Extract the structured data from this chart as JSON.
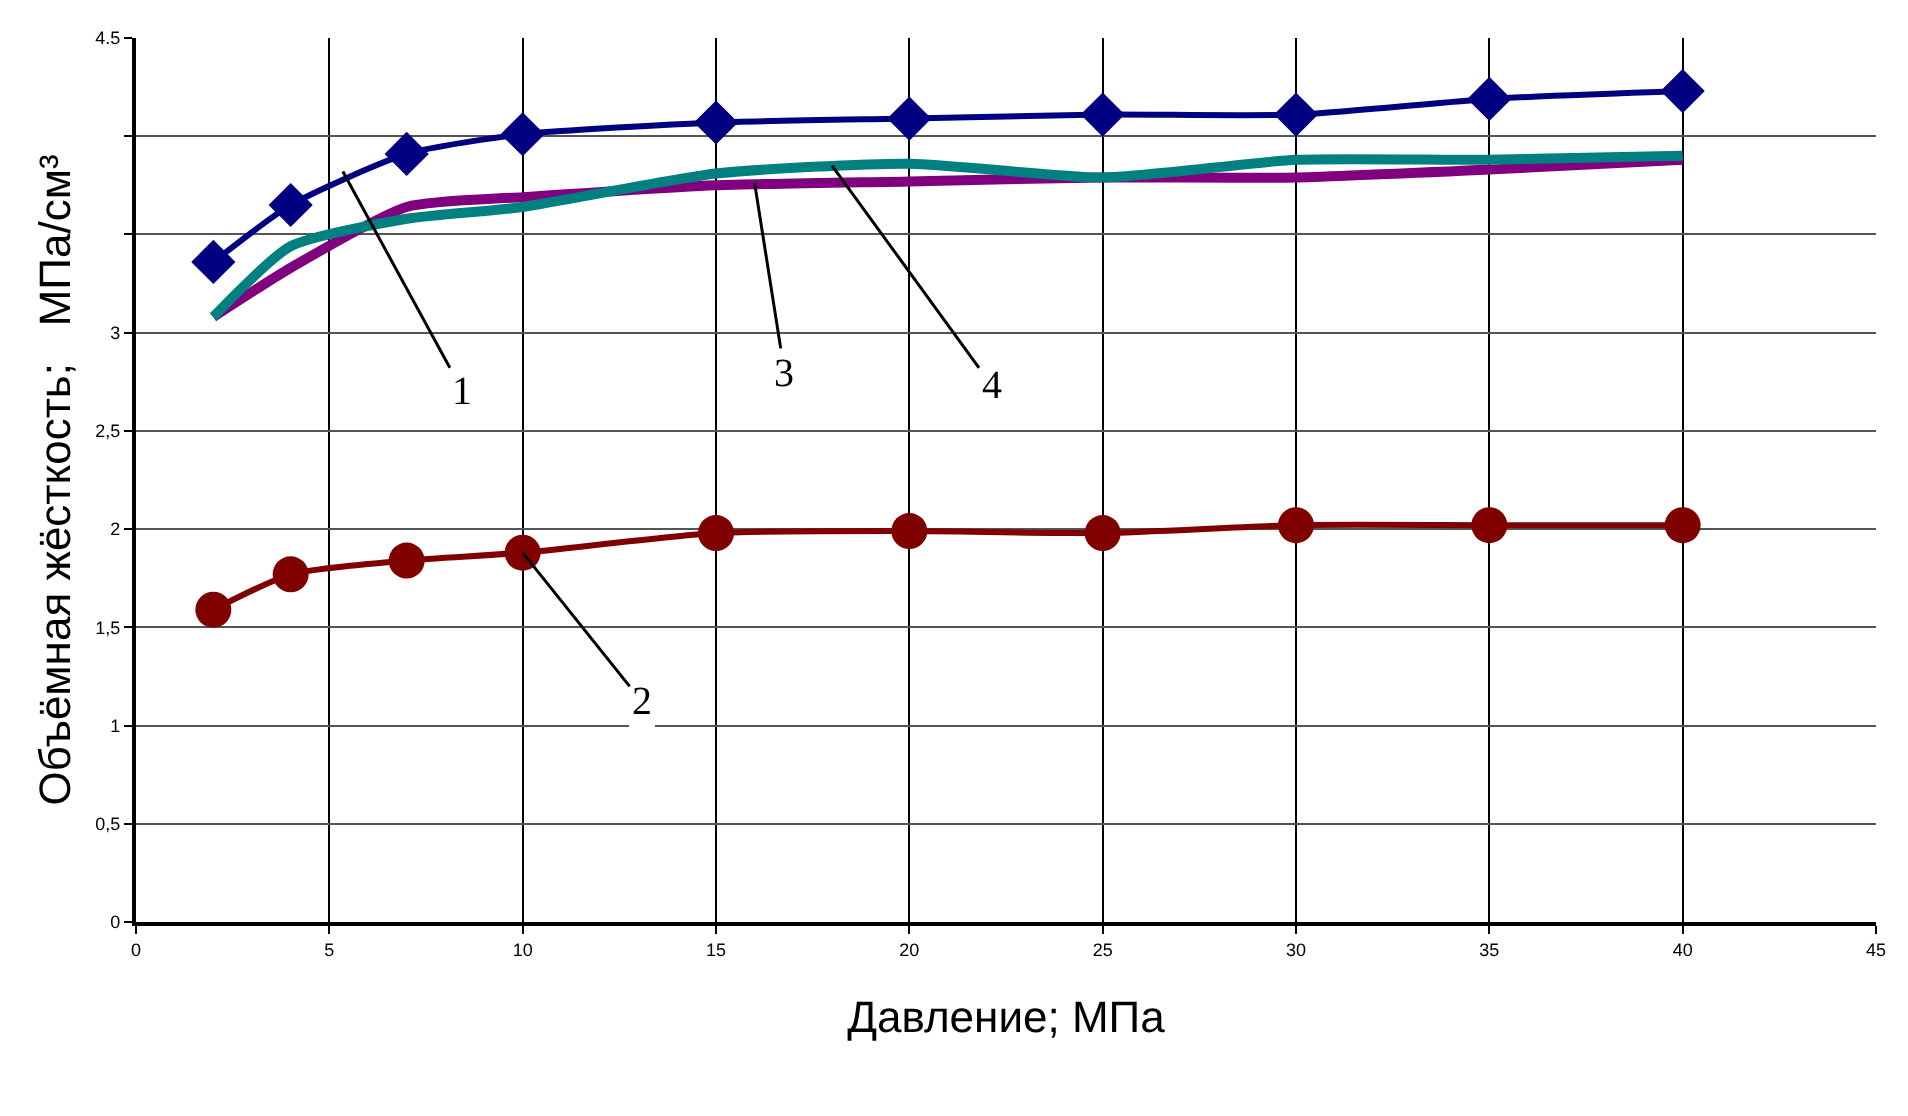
{
  "chart_data": {
    "type": "line",
    "xlabel": "Давление; МПа",
    "ylabel": "Объёмная жёсткость;   МПа/см³",
    "x": [
      2,
      4,
      7,
      10,
      15,
      20,
      25,
      30,
      35,
      40
    ],
    "series": [
      {
        "color": "#000080",
        "marker": "diamond",
        "values": [
          3.36,
          3.65,
          3.91,
          4.01,
          4.07,
          4.09,
          4.11,
          4.11,
          4.19,
          4.23
        ]
      },
      {
        "color": "#800000",
        "marker": "circle",
        "values": [
          1.59,
          1.77,
          1.84,
          1.88,
          1.98,
          1.99,
          1.98,
          2.02,
          2.02,
          2.02
        ]
      },
      {
        "color": "#800080",
        "marker": "none",
        "values": [
          3.08,
          3.33,
          3.64,
          3.69,
          3.75,
          3.77,
          3.79,
          3.79,
          3.83,
          3.88
        ]
      },
      {
        "color": "#008080",
        "marker": "none",
        "values": [
          3.08,
          3.44,
          3.58,
          3.64,
          3.81,
          3.86,
          3.79,
          3.88,
          3.88,
          3.9
        ]
      }
    ],
    "xlim": [
      0,
      45
    ],
    "xticks": [
      0,
      5,
      10,
      15,
      20,
      25,
      30,
      35,
      40,
      45
    ],
    "ylim": [
      0,
      4.5
    ],
    "yticks": [
      0,
      {
        "value": 0.5,
        "label": "0,5"
      },
      1,
      {
        "value": 1.5,
        "label": "1,5"
      },
      2,
      {
        "value": 2.5,
        "label": "2,5"
      },
      3,
      {
        "value": 3.5,
        "label": null
      },
      {
        "value": 4,
        "label": null
      },
      4.5
    ],
    "grid": true,
    "line_style": "solid",
    "annotations": [
      {
        "text": "1",
        "x": 5.35,
        "y": 3.82
      },
      {
        "text": "2",
        "x": 10,
        "y": 1.88
      },
      {
        "text": "3",
        "x": 16,
        "y": 3.76
      },
      {
        "text": "4",
        "x": 18,
        "y": 3.85
      }
    ]
  }
}
